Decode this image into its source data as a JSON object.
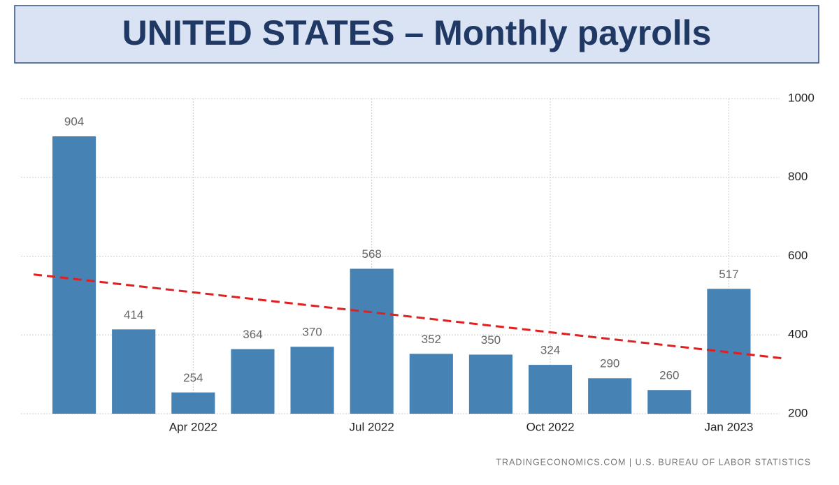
{
  "chart_data": {
    "type": "bar",
    "title": "UNITED STATES – Monthly payrolls",
    "categories": [
      null,
      null,
      "Apr 2022",
      null,
      null,
      "Jul 2022",
      null,
      null,
      "Oct 2022",
      null,
      null,
      "Jan 2023"
    ],
    "values": [
      904,
      414,
      254,
      364,
      370,
      568,
      352,
      350,
      324,
      290,
      260,
      517
    ],
    "color": "#4682b4",
    "ylim": [
      200,
      1000
    ],
    "yticks": [
      200,
      400,
      600,
      800,
      1000
    ],
    "grid": true,
    "trend": {
      "values": [
        542,
        356
      ],
      "color": "#e02020"
    },
    "source": "TRADINGECONOMICS.COM | U.S. BUREAU OF LABOR STATISTICS"
  }
}
